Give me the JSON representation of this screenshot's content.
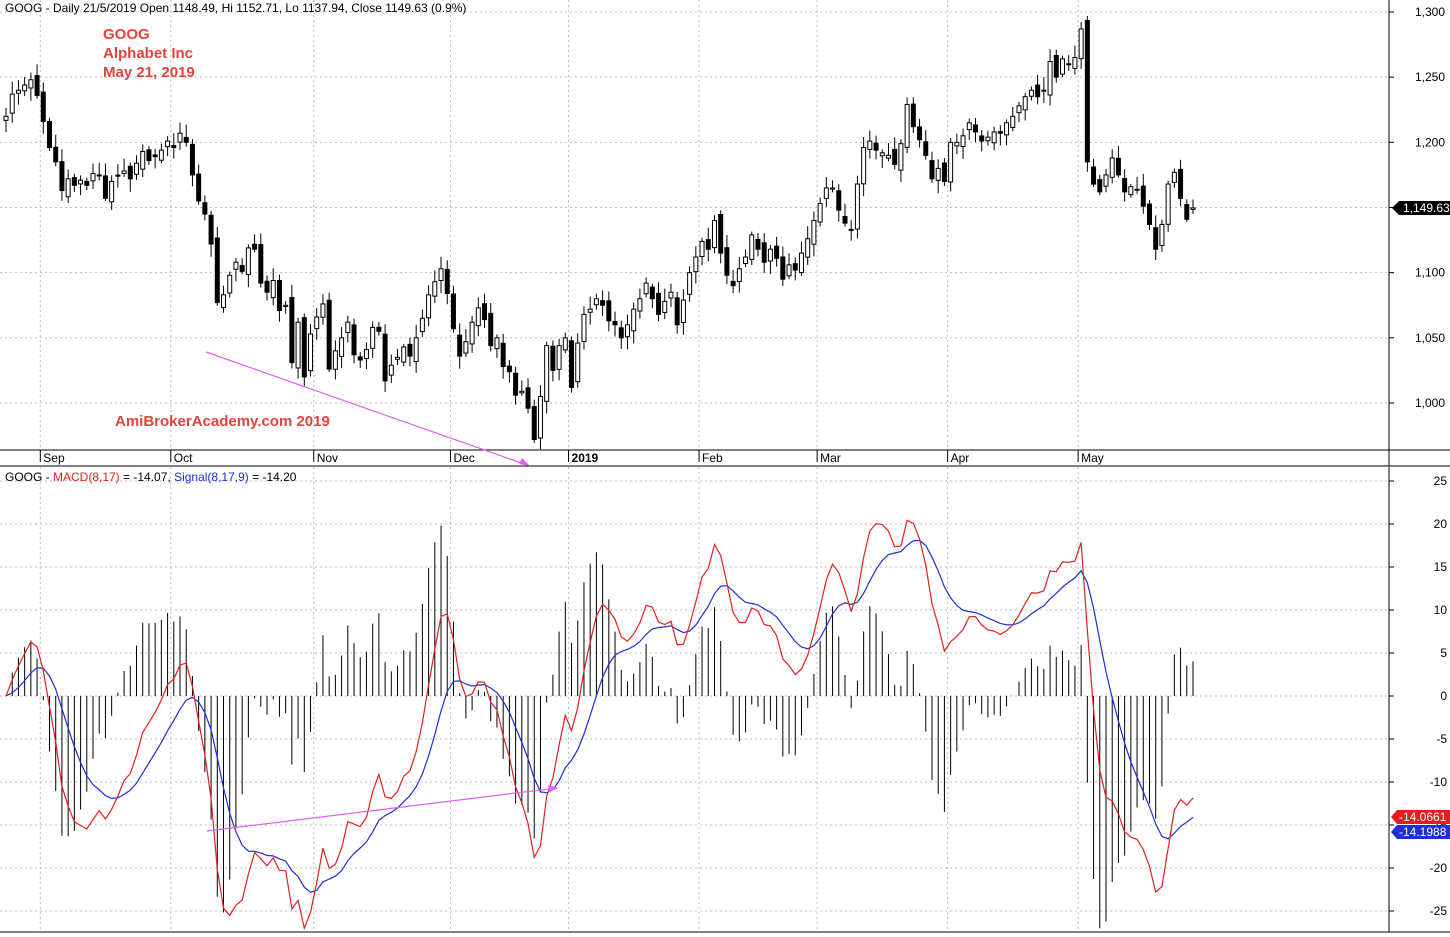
{
  "upper_header": {
    "text": "GOOG - Daily 21/5/2019 Open 1148.49, Hi 1152.71, Lo 1137.94, Close 1149.63 (0.9%)"
  },
  "annotations": {
    "ticker": "GOOG",
    "company": "Alphabet Inc",
    "date": "May 21, 2019",
    "watermark": "AmiBrokerAcademy.com  2019"
  },
  "price_tag": "1,149.63",
  "lower_header": {
    "prefix": "GOOG - ",
    "macd_label": "MACD(8,17)",
    "macd_value": " = -14.07, ",
    "signal_label": "Signal(8,17,9)",
    "signal_value": " = -14.20"
  },
  "macd_tag": "-14.0661",
  "signal_tag": "-14.1988",
  "colors": {
    "macd": "#e02020",
    "signal": "#1f2fd6",
    "divergence": "#e060f0",
    "annotation": "#e2443a",
    "grid": "#c0c0c0"
  },
  "chart_data": [
    {
      "type": "candlestick",
      "title": "GOOG - Daily 21/5/2019 Open 1148.49, Hi 1152.71, Lo 1137.94, Close 1149.63 (0.9%)",
      "ylim": [
        960,
        1310
      ],
      "yticks": [
        1000,
        1050,
        1100,
        1150,
        1200,
        1250,
        1300
      ],
      "ytick_labels": [
        "1,000",
        "1,050",
        "1,100",
        "1,150",
        "1,200",
        "1,250",
        "1,300"
      ],
      "x_tick_labels": [
        {
          "label": "Sep",
          "index": 6
        },
        {
          "label": "Oct",
          "index": 27
        },
        {
          "label": "Nov",
          "index": 50
        },
        {
          "label": "Dec",
          "index": 72
        },
        {
          "label": "2019",
          "index": 91
        },
        {
          "label": "Feb",
          "index": 112
        },
        {
          "label": "Mar",
          "index": 131
        },
        {
          "label": "Apr",
          "index": 152
        },
        {
          "label": "May",
          "index": 173
        }
      ],
      "grid": true,
      "last_close": 1149.63,
      "closes": [
        1220,
        1237,
        1240,
        1244,
        1248,
        1236,
        1216,
        1196,
        1185,
        1163,
        1172,
        1167,
        1171,
        1167,
        1176,
        1175,
        1157,
        1170,
        1174,
        1178,
        1172,
        1184,
        1193,
        1186,
        1189,
        1194,
        1201,
        1196,
        1207,
        1200,
        1175,
        1155,
        1145,
        1122,
        1077,
        1083,
        1098,
        1108,
        1101,
        1119,
        1118,
        1092,
        1085,
        1094,
        1071,
        1075,
        1031,
        1062,
        1020,
        1053,
        1066,
        1076,
        1026,
        1040,
        1050,
        1062,
        1037,
        1033,
        1041,
        1058,
        1055,
        1017,
        1029,
        1035,
        1043,
        1036,
        1050,
        1065,
        1083,
        1093,
        1103,
        1084,
        1057,
        1036,
        1047,
        1062,
        1073,
        1064,
        1044,
        1050,
        1028,
        1024,
        1006,
        1009,
        996,
        972,
        1005,
        1044,
        1025,
        1044,
        1050,
        1012,
        1046,
        1068,
        1072,
        1080,
        1075,
        1063,
        1060,
        1050,
        1060,
        1072,
        1080,
        1092,
        1080,
        1068,
        1078,
        1085,
        1060,
        1079,
        1100,
        1112,
        1124,
        1118,
        1140,
        1115,
        1098,
        1090,
        1103,
        1112,
        1129,
        1118,
        1108,
        1118,
        1111,
        1095,
        1106,
        1102,
        1115,
        1126,
        1140,
        1153,
        1165,
        1165,
        1148,
        1138,
        1133,
        1168,
        1196,
        1201,
        1194,
        1192,
        1190,
        1183,
        1199,
        1229,
        1212,
        1202,
        1190,
        1172,
        1180,
        1170,
        1200,
        1200,
        1205,
        1215,
        1208,
        1201,
        1204,
        1208,
        1207,
        1215,
        1220,
        1228,
        1235,
        1240,
        1235,
        1240,
        1262,
        1250,
        1264,
        1260,
        1265,
        1287,
        1185,
        1168,
        1162,
        1175,
        1188,
        1175,
        1162,
        1166,
        1164,
        1151,
        1137,
        1118,
        1137,
        1168,
        1177,
        1157,
        1141,
        1149.63
      ]
    },
    {
      "type": "line",
      "title": "GOOG - MACD(8,17) = -14.07, Signal(8,17,9) = -14.20",
      "ylim": [
        -27,
        26
      ],
      "yticks": [
        -25,
        -20,
        -15,
        -10,
        -5,
        0,
        5,
        10,
        15,
        20,
        25
      ],
      "grid": true,
      "series": [
        {
          "name": "MACD(8,17)",
          "color": "#e02020",
          "last_value": -14.0661
        },
        {
          "name": "Signal(8,17,9)",
          "color": "#1f2fd6",
          "last_value": -14.1988
        }
      ],
      "bars": "MACD minus Signal histogram (black)"
    }
  ]
}
